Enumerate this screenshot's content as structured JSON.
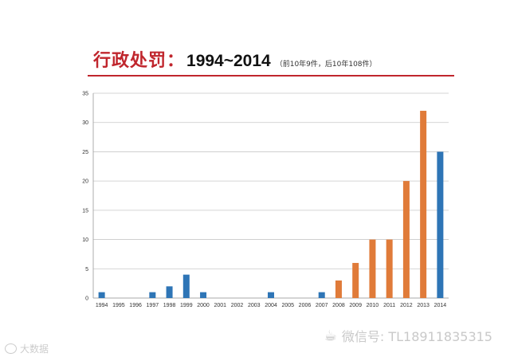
{
  "header": {
    "title": "行政处罚：",
    "years": "1994~2014",
    "note": "（前10年9件，后10年108件）"
  },
  "watermark": {
    "icon": "wechat-icon",
    "text": "微信号: TL18911835315"
  },
  "logo": {
    "icon": "weibo-icon",
    "text": "大数据"
  },
  "colors": {
    "title_red": "#c0262d",
    "bar_blue": "#2e75b6",
    "bar_orange": "#e07b39",
    "grid": "#c8c8c8"
  },
  "chart_data": {
    "type": "bar",
    "categories": [
      "1994",
      "1995",
      "1996",
      "1997",
      "1998",
      "1999",
      "2000",
      "2001",
      "2002",
      "2003",
      "2004",
      "2005",
      "2006",
      "2007",
      "2008",
      "2009",
      "2010",
      "2011",
      "2012",
      "2013",
      "2014"
    ],
    "values": [
      1,
      0,
      0,
      1,
      2,
      4,
      1,
      0,
      0,
      0,
      1,
      0,
      0,
      1,
      3,
      6,
      10,
      10,
      20,
      32,
      25
    ],
    "bar_colors": [
      "#2e75b6",
      "#2e75b6",
      "#2e75b6",
      "#2e75b6",
      "#2e75b6",
      "#2e75b6",
      "#2e75b6",
      "#2e75b6",
      "#2e75b6",
      "#2e75b6",
      "#2e75b6",
      "#2e75b6",
      "#2e75b6",
      "#2e75b6",
      "#e07b39",
      "#e07b39",
      "#e07b39",
      "#e07b39",
      "#e07b39",
      "#e07b39",
      "#2e75b6"
    ],
    "yticks": [
      0,
      5,
      10,
      15,
      20,
      25,
      30,
      35
    ],
    "ylim": [
      0,
      35
    ],
    "title": "",
    "xlabel": "",
    "ylabel": "",
    "grid": true,
    "legend": false
  }
}
